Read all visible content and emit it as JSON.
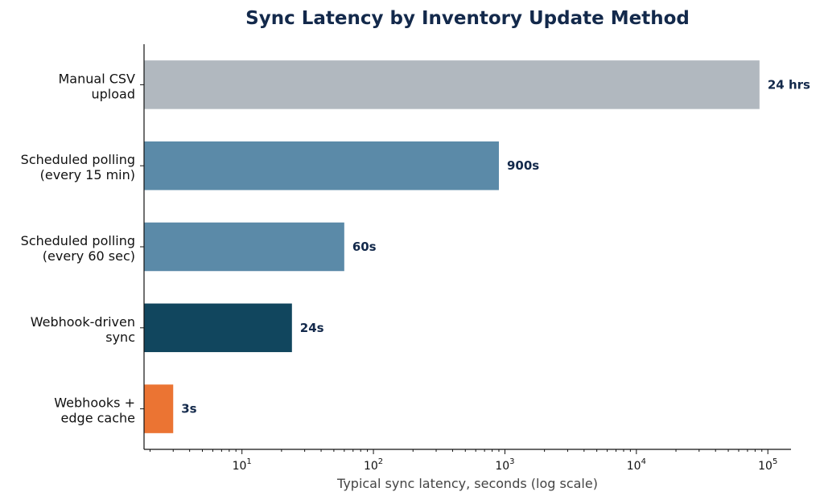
{
  "chart_data": {
    "type": "bar",
    "orientation": "horizontal",
    "title": "Sync Latency by Inventory Update Method",
    "xlabel": "Typical sync latency, seconds (log scale)",
    "ylabel": "",
    "x_scale": "log",
    "xlim": [
      1.8,
      150000
    ],
    "grid": false,
    "categories": [
      [
        "Manual CSV",
        "upload"
      ],
      [
        "Scheduled polling",
        "(every 15 min)"
      ],
      [
        "Scheduled polling",
        "(every 60 sec)"
      ],
      [
        "Webhook-driven",
        "sync"
      ],
      [
        "Webhooks +",
        "edge cache"
      ]
    ],
    "values": [
      86400,
      900,
      60,
      24,
      3
    ],
    "data_labels": [
      "24 hrs",
      "900s",
      "60s",
      "24s",
      "3s"
    ],
    "colors": [
      "#b1b8bf",
      "#5b8aa8",
      "#5b8aa8",
      "#11465e",
      "#eb7433"
    ],
    "x_ticks": [
      {
        "base": "10",
        "exp": "1",
        "value": 10
      },
      {
        "base": "10",
        "exp": "2",
        "value": 100
      },
      {
        "base": "10",
        "exp": "3",
        "value": 1000
      },
      {
        "base": "10",
        "exp": "4",
        "value": 10000
      },
      {
        "base": "10",
        "exp": "5",
        "value": 100000
      }
    ]
  }
}
